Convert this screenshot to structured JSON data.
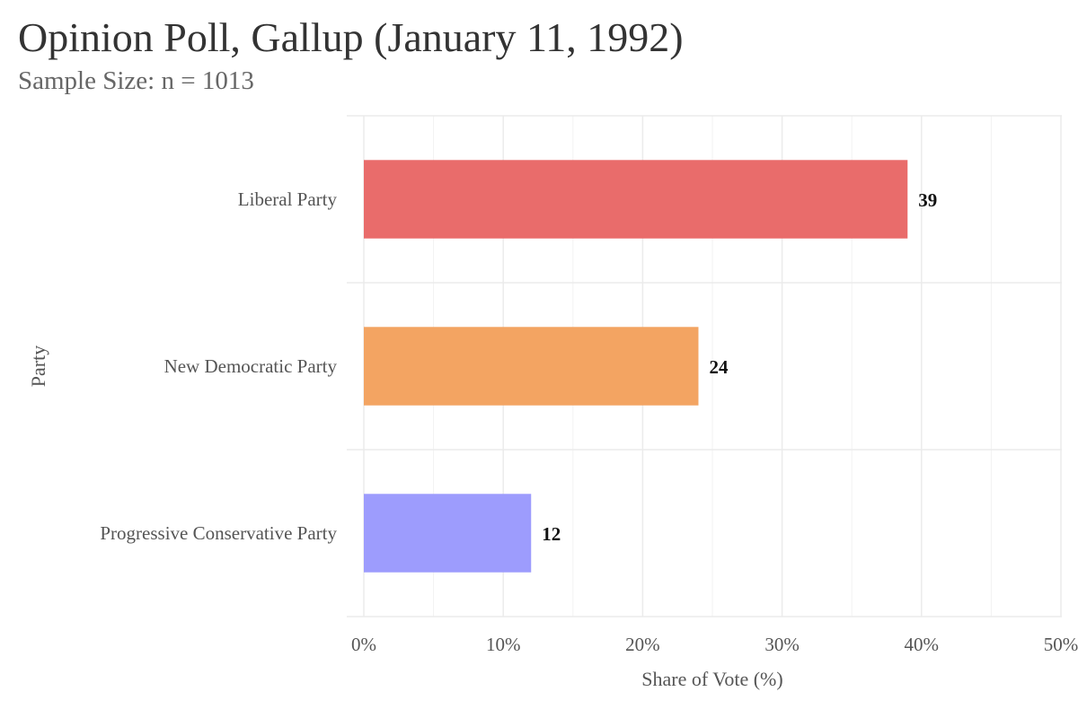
{
  "chart_data": {
    "type": "bar",
    "orientation": "horizontal",
    "title": "Opinion Poll, Gallup (January 11, 1992)",
    "subtitle": "Sample Size: n = 1013",
    "xlabel": "Share of Vote (%)",
    "ylabel": "Party",
    "categories": [
      "Liberal Party",
      "New Democratic Party",
      "Progressive Conservative Party"
    ],
    "values": [
      39,
      24,
      12
    ],
    "value_labels": [
      "39",
      "24",
      "12"
    ],
    "colors": [
      "#e96c6b",
      "#f3a462",
      "#9d9cfd"
    ],
    "xlim": [
      0,
      50
    ],
    "xticks": [
      0,
      10,
      20,
      30,
      40,
      50
    ],
    "xtick_labels": [
      "0%",
      "10%",
      "20%",
      "30%",
      "40%",
      "50%"
    ],
    "grid": true,
    "legend": "none"
  }
}
